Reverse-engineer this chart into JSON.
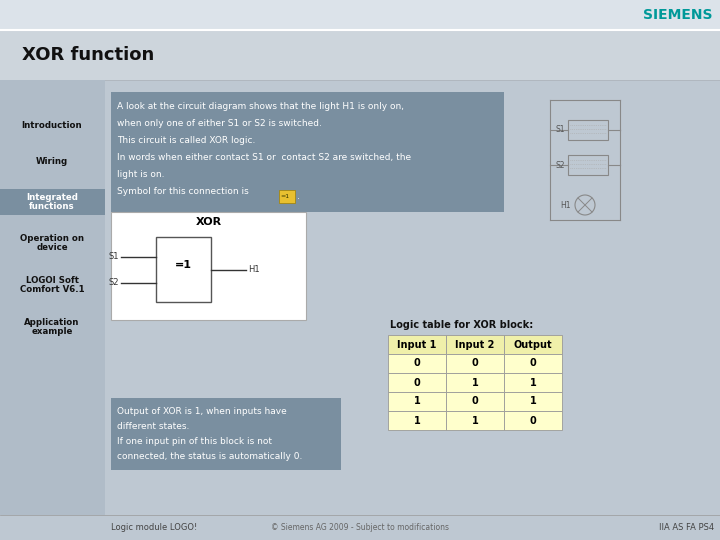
{
  "title": "XOR function",
  "siemens_color": "#009999",
  "bg_color": "#bec8d2",
  "sidebar_bg": "#b0bcc8",
  "sidebar_highlight": "#7a8fa0",
  "header_top_color": "#d5dce3",
  "title_band_color": "#cdd5dc",
  "content_box_color": "#7a8fa0",
  "sidebar_items": [
    "Introduction",
    "Wiring",
    "Integrated\nfunctions",
    "Operation on\ndevice",
    "LOGOI Soft\nComfort V6.1",
    "Application\nexample"
  ],
  "sidebar_active": 2,
  "xor_label": "XOR",
  "block_label": "=1",
  "input1_label": "S1",
  "input2_label": "S2",
  "output_label": "H1",
  "output_text_lines": [
    "Output of XOR is 1, when inputs have",
    "different states.",
    "If one input pin of this block is not",
    "connected, the status is automatically 0."
  ],
  "logic_table_title": "Logic table for XOR block:",
  "table_headers": [
    "Input 1",
    "Input 2",
    "Output"
  ],
  "table_data": [
    [
      0,
      0,
      0
    ],
    [
      0,
      1,
      1
    ],
    [
      1,
      0,
      1
    ],
    [
      1,
      1,
      0
    ]
  ],
  "table_bg": "#ffffcc",
  "table_header_bg": "#f0f0aa",
  "footer_left": "Logic module LOGO!",
  "footer_right": "IIA AS FA PS4",
  "footer_copy": "© Siemens AG 2009 - Subject to modifications",
  "title_fontsize": 13,
  "sidebar_fontsize": 6.2,
  "body_fontsize": 6.5,
  "table_fontsize": 7,
  "siemens_fontsize": 10,
  "main_text_lines": [
    "A look at the circuit diagram shows that the light H1 is only on,",
    "when only one of either S1 or S2 is switched.",
    "This circuit is called XOR logic.",
    "In words when either contact S1 or  contact S2 are switched, the",
    "light is on.",
    "Symbol for this connection is"
  ]
}
